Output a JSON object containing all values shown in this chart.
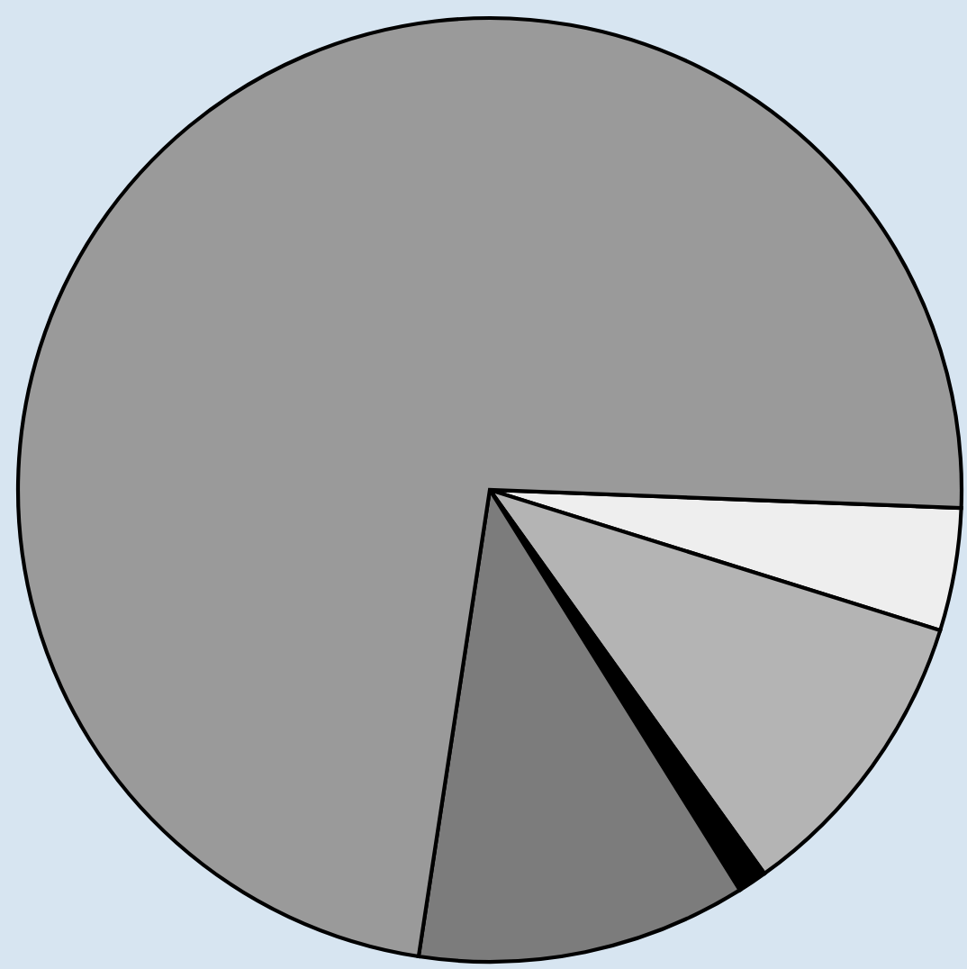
{
  "chart_data": {
    "type": "pie",
    "categories": [
      null,
      null,
      null,
      null,
      null
    ],
    "values": [
      4.2,
      10.3,
      1.0,
      11.3,
      73.2
    ],
    "colors": [
      "#eeeeee",
      "#b4b4b4",
      "#000000",
      "#7c7c7c",
      "#9a9a9a"
    ]
  }
}
